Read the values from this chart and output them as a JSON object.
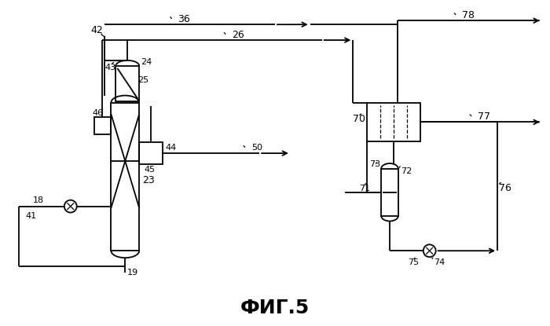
{
  "title": "ФИГ.5",
  "bg_color": "#ffffff",
  "line_color": "#000000",
  "title_fontsize": 18,
  "label_fontsize": 9
}
